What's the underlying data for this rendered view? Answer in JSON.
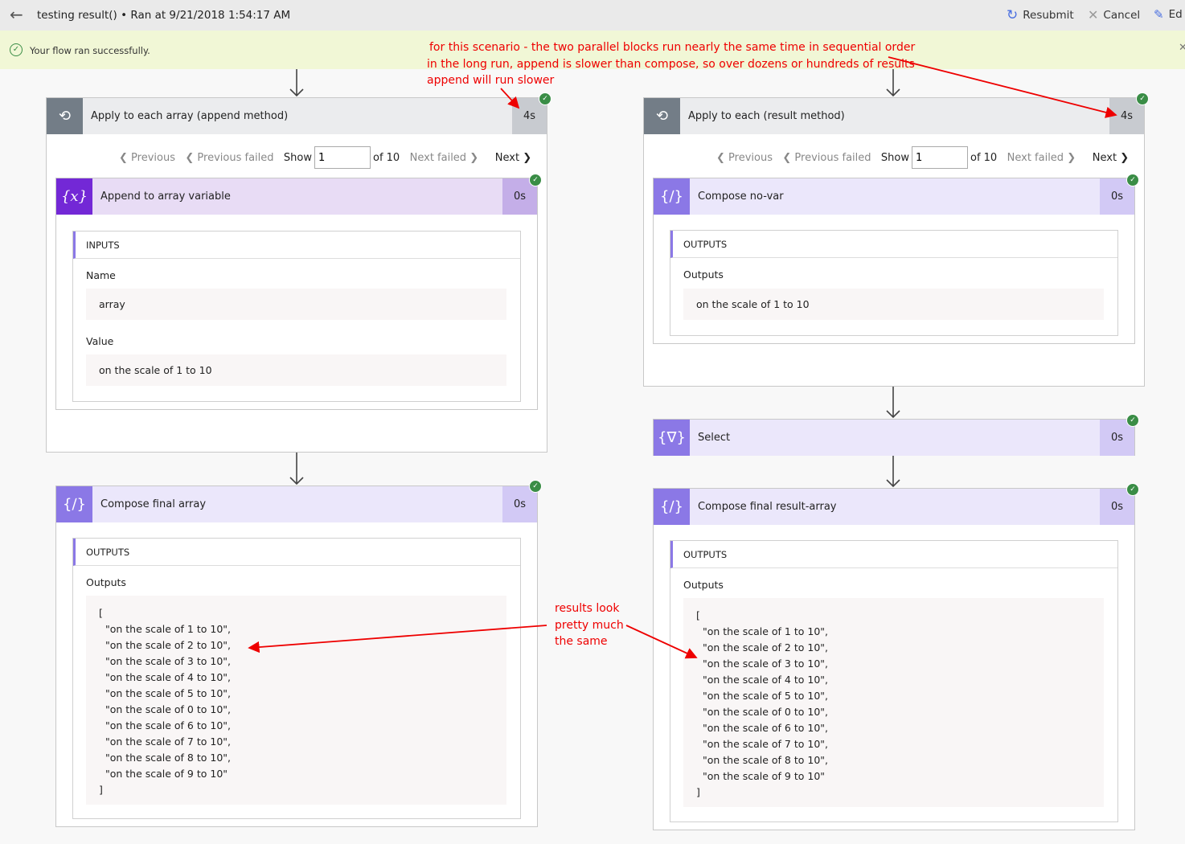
{
  "header": {
    "title": "testing result() • Ran at 9/21/2018 1:54:17 AM",
    "resubmit": "Resubmit",
    "cancel": "Cancel",
    "edit": "Ed"
  },
  "banner": {
    "message": "Your flow ran successfully."
  },
  "pager": {
    "previous": "Previous",
    "previous_failed": "Previous failed",
    "show": "Show",
    "value": "1",
    "of": "of 10",
    "next_failed": "Next failed",
    "next": "Next"
  },
  "left": {
    "loop": {
      "title": "Apply to each array (append method)",
      "duration": "4s"
    },
    "append": {
      "title": "Append to array variable",
      "duration": "0s",
      "section": "INPUTS",
      "name_label": "Name",
      "name_value": "array",
      "value_label": "Value",
      "value_value": "on the scale of 1 to 10"
    },
    "final": {
      "title": "Compose final array",
      "duration": "0s",
      "section": "OUTPUTS",
      "label": "Outputs",
      "lines": [
        "[",
        "  \"on the scale of 1 to 10\",",
        "  \"on the scale of 2 to 10\",",
        "  \"on the scale of 3 to 10\",",
        "  \"on the scale of 4 to 10\",",
        "  \"on the scale of 5 to 10\",",
        "  \"on the scale of 0 to 10\",",
        "  \"on the scale of 6 to 10\",",
        "  \"on the scale of 7 to 10\",",
        "  \"on the scale of 8 to 10\",",
        "  \"on the scale of 9 to 10\"",
        "]"
      ]
    }
  },
  "right": {
    "loop": {
      "title": "Apply to each (result method)",
      "duration": "4s"
    },
    "compose": {
      "title": "Compose no-var",
      "duration": "0s",
      "section": "OUTPUTS",
      "label": "Outputs",
      "value": "on the scale of 1 to 10"
    },
    "select": {
      "title": "Select",
      "duration": "0s"
    },
    "final": {
      "title": "Compose final result-array",
      "duration": "0s",
      "section": "OUTPUTS",
      "label": "Outputs",
      "lines": [
        "[",
        "  \"on the scale of 1 to 10\",",
        "  \"on the scale of 2 to 10\",",
        "  \"on the scale of 3 to 10\",",
        "  \"on the scale of 4 to 10\",",
        "  \"on the scale of 5 to 10\",",
        "  \"on the scale of 0 to 10\",",
        "  \"on the scale of 6 to 10\",",
        "  \"on the scale of 7 to 10\",",
        "  \"on the scale of 8 to 10\",",
        "  \"on the scale of 9 to 10\"",
        "]"
      ]
    }
  },
  "annotations": {
    "top": [
      "for this scenario - the two parallel blocks run nearly the same time in sequential order",
      "in the long run, append is slower than compose, so over dozens or hundreds of results",
      "append will run slower"
    ],
    "middle": [
      "results look",
      "pretty much",
      "the same"
    ]
  },
  "colors": {
    "annotation": "#ee0000",
    "success": "#3a8d46",
    "loop": "#737d87",
    "variable": "#7328d6",
    "compose": "#8b78e6"
  }
}
